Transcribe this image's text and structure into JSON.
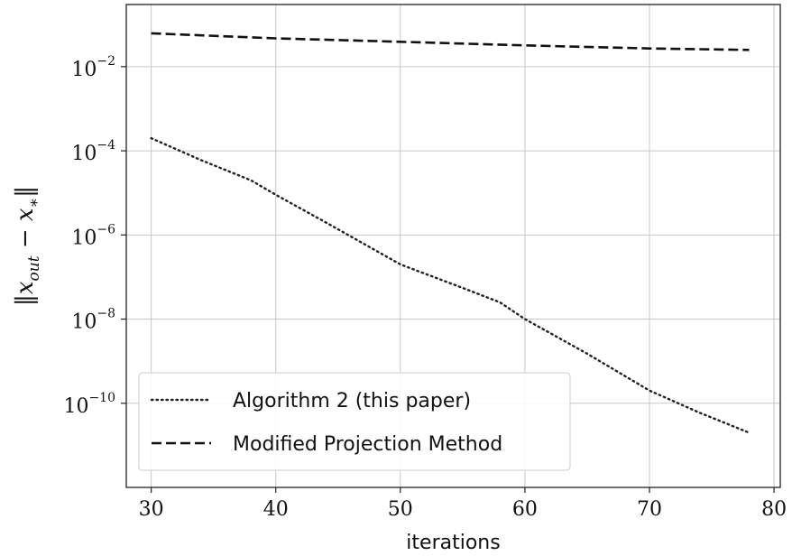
{
  "chart_data": {
    "type": "line",
    "xlabel": "iterations",
    "ylabel": {
      "pre": "‖",
      "var": "x",
      "sub": "out",
      "mid": " − ",
      "var2": "x",
      "sub2": "∗",
      "post": "‖"
    },
    "yscale": "log",
    "xlim": [
      28,
      80.5
    ],
    "ylim": [
      1e-12,
      0.3
    ],
    "grid": true,
    "legend": "lower-left",
    "x_ticks": [
      {
        "v": 30,
        "label": "30"
      },
      {
        "v": 40,
        "label": "40"
      },
      {
        "v": 50,
        "label": "50"
      },
      {
        "v": 60,
        "label": "60"
      },
      {
        "v": 70,
        "label": "70"
      },
      {
        "v": 80,
        "label": "80"
      }
    ],
    "y_ticks": [
      {
        "v": 1e-10,
        "base": "10",
        "exp": "−10"
      },
      {
        "v": 1e-08,
        "base": "10",
        "exp": "−8"
      },
      {
        "v": 1e-06,
        "base": "10",
        "exp": "−6"
      },
      {
        "v": 0.0001,
        "base": "10",
        "exp": "−4"
      },
      {
        "v": 0.01,
        "base": "10",
        "exp": "−2"
      }
    ],
    "series": [
      {
        "name": "Algorithm 2 (this paper)",
        "style": "dotted",
        "color": "#222222",
        "x": [
          30,
          34,
          38,
          40,
          44,
          50,
          55,
          58,
          60,
          65,
          70,
          74,
          78
        ],
        "y": [
          0.0002,
          6e-05,
          2e-05,
          9e-06,
          2e-06,
          2e-07,
          5.5e-08,
          2.5e-08,
          1e-08,
          1.5e-09,
          2e-10,
          6e-11,
          2e-11
        ]
      },
      {
        "name": "Modified Projection Method",
        "style": "dashed",
        "color": "#111111",
        "x": [
          30,
          40,
          50,
          60,
          70,
          78
        ],
        "y": [
          0.062,
          0.047,
          0.039,
          0.032,
          0.027,
          0.025
        ]
      }
    ]
  }
}
